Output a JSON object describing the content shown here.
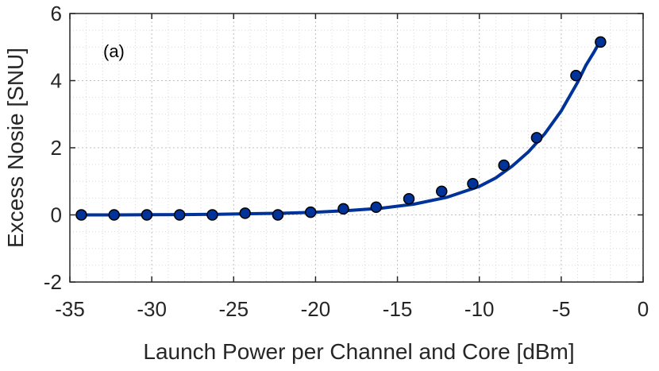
{
  "chart_data": {
    "type": "line",
    "panel_label": "(a)",
    "xlabel": "Launch Power per Channel and Core [dBm]",
    "ylabel": "Excess Nosie [SNU]",
    "xlim": [
      -35,
      0
    ],
    "ylim": [
      -2,
      6
    ],
    "xticks": [
      -35,
      -30,
      -25,
      -20,
      -15,
      -10,
      -5,
      0
    ],
    "yticks": [
      -2,
      0,
      2,
      4,
      6
    ],
    "xtick_labels": [
      "-35",
      "-30",
      "-25",
      "-20",
      "-15",
      "-10",
      "-5",
      "0"
    ],
    "ytick_labels": [
      "-2",
      "0",
      "2",
      "4",
      "6"
    ],
    "grid": true,
    "minor_grid": true,
    "colors": {
      "series": "#003399",
      "marker_edge": "#000000",
      "axis": "#262626"
    },
    "series": [
      {
        "kind": "scatter",
        "x": [
          -34.3,
          -32.3,
          -30.3,
          -28.3,
          -26.3,
          -24.3,
          -22.3,
          -20.3,
          -18.3,
          -16.3,
          -14.3,
          -12.3,
          -10.4,
          -8.5,
          -6.5,
          -4.1,
          -2.6
        ],
        "y": [
          0.0,
          0.0,
          0.0,
          0.0,
          0.0,
          0.05,
          0.0,
          0.08,
          0.18,
          0.23,
          0.48,
          0.7,
          0.93,
          1.48,
          2.3,
          4.15,
          5.15
        ]
      },
      {
        "kind": "line",
        "x": [
          -34.3,
          -32,
          -30,
          -28,
          -26,
          -24,
          -22,
          -20,
          -18,
          -16,
          -14,
          -12,
          -10,
          -9,
          -8,
          -7,
          -6,
          -5,
          -4,
          -3.5,
          -3,
          -2.6
        ],
        "y": [
          0.0,
          0.0,
          0.005,
          0.01,
          0.02,
          0.035,
          0.05,
          0.08,
          0.13,
          0.2,
          0.32,
          0.52,
          0.85,
          1.1,
          1.45,
          1.88,
          2.42,
          3.1,
          3.95,
          4.45,
          4.85,
          5.2
        ]
      }
    ]
  }
}
